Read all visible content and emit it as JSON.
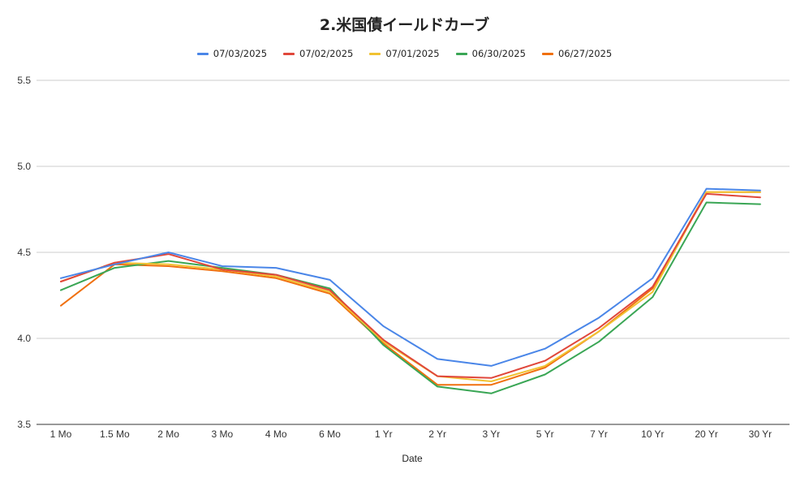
{
  "chart_data": {
    "type": "line",
    "title": "2.米国債イールドカーブ",
    "xlabel": "Date",
    "ylabel": "",
    "ylim": [
      3.5,
      5.5
    ],
    "yticks": [
      "3.5",
      "4.0",
      "4.5",
      "5.0",
      "5.5"
    ],
    "yticks_values": [
      3.5,
      4.0,
      4.5,
      5.0,
      5.5
    ],
    "grid": true,
    "legend_position": "top",
    "categories": [
      "1 Mo",
      "1.5 Mo",
      "2 Mo",
      "3 Mo",
      "4 Mo",
      "6 Mo",
      "1 Yr",
      "2 Yr",
      "3 Yr",
      "5 Yr",
      "7 Yr",
      "10 Yr",
      "20 Yr",
      "30 Yr"
    ],
    "series": [
      {
        "name": "07/03/2025",
        "color": "#4a86e8",
        "values": [
          4.35,
          4.43,
          4.5,
          4.42,
          4.41,
          4.34,
          4.07,
          3.88,
          3.84,
          3.94,
          4.12,
          4.35,
          4.87,
          4.86
        ]
      },
      {
        "name": "07/02/2025",
        "color": "#e0473b",
        "values": [
          4.33,
          4.44,
          4.49,
          4.4,
          4.37,
          4.28,
          3.99,
          3.78,
          3.77,
          3.87,
          4.06,
          4.3,
          4.84,
          4.82
        ]
      },
      {
        "name": "07/01/2025",
        "color": "#f1c232",
        "values": [
          4.33,
          4.44,
          4.43,
          4.4,
          4.36,
          4.27,
          3.98,
          3.78,
          3.75,
          3.84,
          4.04,
          4.27,
          4.85,
          4.85
        ]
      },
      {
        "name": "06/30/2025",
        "color": "#3aa655",
        "values": [
          4.28,
          4.41,
          4.45,
          4.41,
          4.37,
          4.29,
          3.96,
          3.72,
          3.68,
          3.79,
          3.98,
          4.24,
          4.79,
          4.78
        ]
      },
      {
        "name": "06/27/2025",
        "color": "#f0700f",
        "values": [
          4.19,
          4.43,
          4.42,
          4.39,
          4.35,
          4.26,
          3.97,
          3.73,
          3.73,
          3.83,
          4.04,
          4.29,
          4.85,
          4.85
        ]
      }
    ]
  }
}
